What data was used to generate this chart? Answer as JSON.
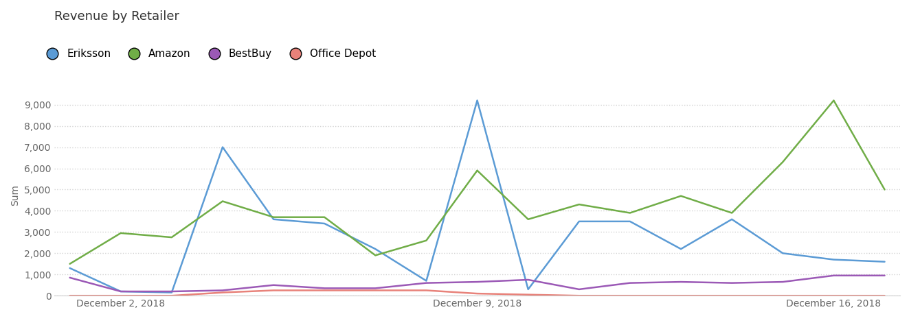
{
  "title": "Revenue by Retailer",
  "ylabel": "Sum",
  "x_tick_labels": [
    "December 2, 2018",
    "December 9, 2018",
    "December 16, 2018"
  ],
  "x_tick_positions": [
    1,
    8,
    15
  ],
  "n_points": 17,
  "series": {
    "Eriksson": {
      "color": "#5B9BD5",
      "values": [
        1300,
        200,
        150,
        7000,
        3600,
        3400,
        2200,
        700,
        9200,
        300,
        3500,
        3500,
        2200,
        3600,
        2000,
        1700,
        1600
      ]
    },
    "Amazon": {
      "color": "#70AD47",
      "values": [
        1500,
        2950,
        2750,
        4450,
        3700,
        3700,
        1900,
        2600,
        5900,
        3600,
        4300,
        3900,
        4700,
        3900,
        6300,
        9200,
        5000
      ]
    },
    "BestBuy": {
      "color": "#9B59B6",
      "values": [
        850,
        200,
        200,
        250,
        500,
        350,
        350,
        600,
        650,
        750,
        300,
        600,
        650,
        600,
        650,
        950,
        950
      ]
    },
    "Office Depot": {
      "color": "#E8827A",
      "values": [
        0,
        0,
        0,
        150,
        250,
        250,
        250,
        250,
        100,
        50,
        0,
        0,
        0,
        0,
        0,
        0,
        0
      ]
    }
  },
  "series_order": [
    "Eriksson",
    "Amazon",
    "BestBuy",
    "Office Depot"
  ],
  "ylim": [
    0,
    9500
  ],
  "yticks": [
    0,
    1000,
    2000,
    3000,
    4000,
    5000,
    6000,
    7000,
    8000,
    9000
  ],
  "background_color": "#ffffff",
  "grid_color": "#d3d3d3",
  "title_fontsize": 13,
  "axis_label_fontsize": 10,
  "tick_fontsize": 10,
  "legend_fontsize": 11,
  "title_color": "#333333",
  "tick_color": "#666666",
  "line_width": 1.8
}
